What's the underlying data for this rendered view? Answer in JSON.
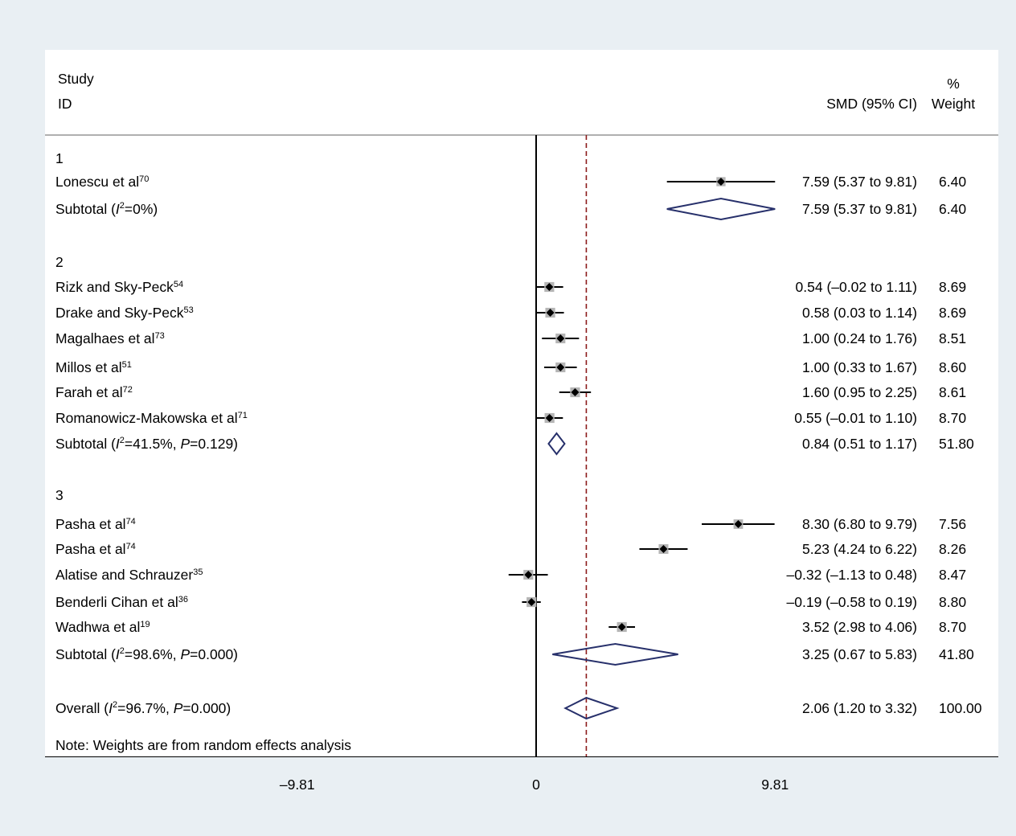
{
  "chart_data": {
    "type": "forest",
    "headers": {
      "study_line1": "Study",
      "study_line2": "ID",
      "smd": "SMD (95% CI)",
      "weight_line1": "%",
      "weight_line2": "Weight"
    },
    "groups": [
      {
        "id": "1",
        "studies": [
          {
            "name": "Lonescu et al",
            "ref": "70",
            "smd": 7.59,
            "lo": 5.37,
            "hi": 9.81,
            "ci_text": "7.59 (5.37 to 9.81)",
            "weight": "6.40"
          }
        ],
        "subtotal": {
          "het_pre": "Subtotal (",
          "i2_label": "I",
          "i2_sup": "2",
          "het_post": "=0%)",
          "smd": 7.59,
          "lo": 5.37,
          "hi": 9.81,
          "ci_text": "7.59 (5.37 to 9.81)",
          "weight": "6.40"
        }
      },
      {
        "id": "2",
        "studies": [
          {
            "name": "Rizk and Sky-Peck",
            "ref": "54",
            "smd": 0.54,
            "lo": -0.02,
            "hi": 1.11,
            "ci_text": "0.54 (–0.02 to 1.11)",
            "weight": "8.69"
          },
          {
            "name": "Drake and Sky-Peck",
            "ref": "53",
            "smd": 0.58,
            "lo": 0.03,
            "hi": 1.14,
            "ci_text": "0.58 (0.03 to 1.14)",
            "weight": "8.69"
          },
          {
            "name": "Magalhaes et al",
            "ref": "73",
            "smd": 1.0,
            "lo": 0.24,
            "hi": 1.76,
            "ci_text": "1.00 (0.24 to 1.76)",
            "weight": "8.51"
          },
          {
            "name": "Millos et al",
            "ref": "51",
            "smd": 1.0,
            "lo": 0.33,
            "hi": 1.67,
            "ci_text": "1.00 (0.33 to 1.67)",
            "weight": "8.60"
          },
          {
            "name": "Farah et al",
            "ref": "72",
            "smd": 1.6,
            "lo": 0.95,
            "hi": 2.25,
            "ci_text": "1.60 (0.95 to 2.25)",
            "weight": "8.61"
          },
          {
            "name": "Romanowicz-Makowska et al",
            "ref": "71",
            "smd": 0.55,
            "lo": -0.01,
            "hi": 1.1,
            "ci_text": "0.55 (–0.01 to 1.10)",
            "weight": "8.70"
          }
        ],
        "subtotal": {
          "het_pre": "Subtotal (",
          "i2_label": "I",
          "i2_sup": "2",
          "het_post": "=41.5%, ",
          "p_label": "P",
          "p_post": "=0.129)",
          "smd": 0.84,
          "lo": 0.51,
          "hi": 1.17,
          "ci_text": "0.84 (0.51 to 1.17)",
          "weight": "51.80"
        }
      },
      {
        "id": "3",
        "studies": [
          {
            "name": "Pasha et al",
            "ref": "74",
            "smd": 8.3,
            "lo": 6.8,
            "hi": 9.79,
            "ci_text": "8.30 (6.80 to 9.79)",
            "weight": "7.56"
          },
          {
            "name": "Pasha et al",
            "ref": "74",
            "smd": 5.23,
            "lo": 4.24,
            "hi": 6.22,
            "ci_text": "5.23 (4.24 to 6.22)",
            "weight": "8.26"
          },
          {
            "name": "Alatise and Schrauzer",
            "ref": "35",
            "smd": -0.32,
            "lo": -1.13,
            "hi": 0.48,
            "ci_text": "–0.32 (–1.13 to 0.48)",
            "weight": "8.47"
          },
          {
            "name": "Benderli Cihan et al",
            "ref": "36",
            "smd": -0.19,
            "lo": -0.58,
            "hi": 0.19,
            "ci_text": "–0.19 (–0.58 to 0.19)",
            "weight": "8.80"
          },
          {
            "name": "Wadhwa et al",
            "ref": "19",
            "smd": 3.52,
            "lo": 2.98,
            "hi": 4.06,
            "ci_text": "3.52 (2.98 to 4.06)",
            "weight": "8.70"
          }
        ],
        "subtotal": {
          "het_pre": "Subtotal (",
          "i2_label": "I",
          "i2_sup": "2",
          "het_post": "=98.6%, ",
          "p_label": "P",
          "p_post": "=0.000)",
          "smd": 3.25,
          "lo": 0.67,
          "hi": 5.83,
          "ci_text": "3.25 (0.67 to 5.83)",
          "weight": "41.80"
        }
      }
    ],
    "overall": {
      "het_pre": "Overall (",
      "i2_label": "I",
      "i2_sup": "2",
      "het_post": "=96.7%, ",
      "p_label": "P",
      "p_post": "=0.000)",
      "smd": 2.06,
      "lo": 1.2,
      "hi": 3.32,
      "ci_text": "2.06 (1.20 to 3.32)",
      "weight": "100.00"
    },
    "note": "Note: Weights are from random effects analysis",
    "x_ticks": [
      {
        "value": -9.81,
        "label": "–9.81"
      },
      {
        "value": 0,
        "label": "0"
      },
      {
        "value": 9.81,
        "label": "9.81"
      }
    ],
    "xlim": [
      -9.81,
      9.81
    ],
    "colors": {
      "diamond": "#27306b",
      "overall_line": "#8b1a1a",
      "marker_box": "#b5b5b5",
      "header_rule": "#b0b0b0"
    }
  }
}
